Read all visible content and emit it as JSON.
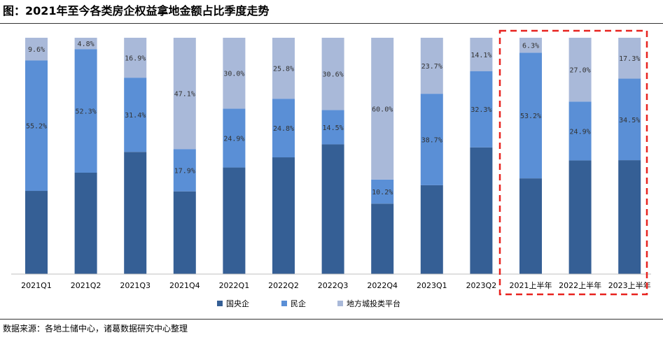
{
  "title": "图：2021年至今各类房企权益拿地金额占比季度走势",
  "source": "数据来源：各地土储中心，诸葛数据研究中心整理",
  "colors": {
    "series1": "#355f95",
    "series2": "#5a8fd6",
    "series3": "#a9b9d9",
    "highlight": "#e8231f"
  },
  "chart_data": {
    "type": "bar",
    "stacked": true,
    "percent_stacked": true,
    "categories": [
      "2021Q1",
      "2021Q2",
      "2021Q3",
      "2021Q4",
      "2022Q1",
      "2022Q2",
      "2022Q3",
      "2022Q4",
      "2023Q1",
      "2023Q2",
      "2021上半年",
      "2022上半年",
      "2023上半年"
    ],
    "series": [
      {
        "name": "国央企",
        "values": [
          35.2,
          42.9,
          51.7,
          35.0,
          45.1,
          49.4,
          54.9,
          29.8,
          37.6,
          53.6,
          40.5,
          48.1,
          48.2
        ],
        "labels": [
          "",
          "",
          "",
          "",
          "",
          "",
          "",
          "",
          "",
          "",
          "",
          "",
          ""
        ]
      },
      {
        "name": "民企",
        "values": [
          55.2,
          52.3,
          31.4,
          17.9,
          24.9,
          24.8,
          14.5,
          10.2,
          38.7,
          32.3,
          53.2,
          24.9,
          34.5
        ],
        "labels": [
          "55.2%",
          "52.3%",
          "31.4%",
          "17.9%",
          "24.9%",
          "24.8%",
          "14.5%",
          "10.2%",
          "38.7%",
          "32.3%",
          "53.2%",
          "24.9%",
          "34.5%"
        ]
      },
      {
        "name": "地方城投类平台",
        "values": [
          9.6,
          4.8,
          16.9,
          47.1,
          30.0,
          25.8,
          30.6,
          60.0,
          23.7,
          14.1,
          6.3,
          27.0,
          17.3
        ],
        "labels": [
          "9.6%",
          "4.8%",
          "16.9%",
          "47.1%",
          "30.0%",
          "25.8%",
          "30.6%",
          "60.0%",
          "23.7%",
          "14.1%",
          "6.3%",
          "27.0%",
          "17.3%"
        ]
      }
    ],
    "ylim": [
      0,
      100
    ],
    "grid": false,
    "legend_position": "bottom",
    "highlight_categories": [
      "2021上半年",
      "2022上半年",
      "2023上半年"
    ]
  }
}
